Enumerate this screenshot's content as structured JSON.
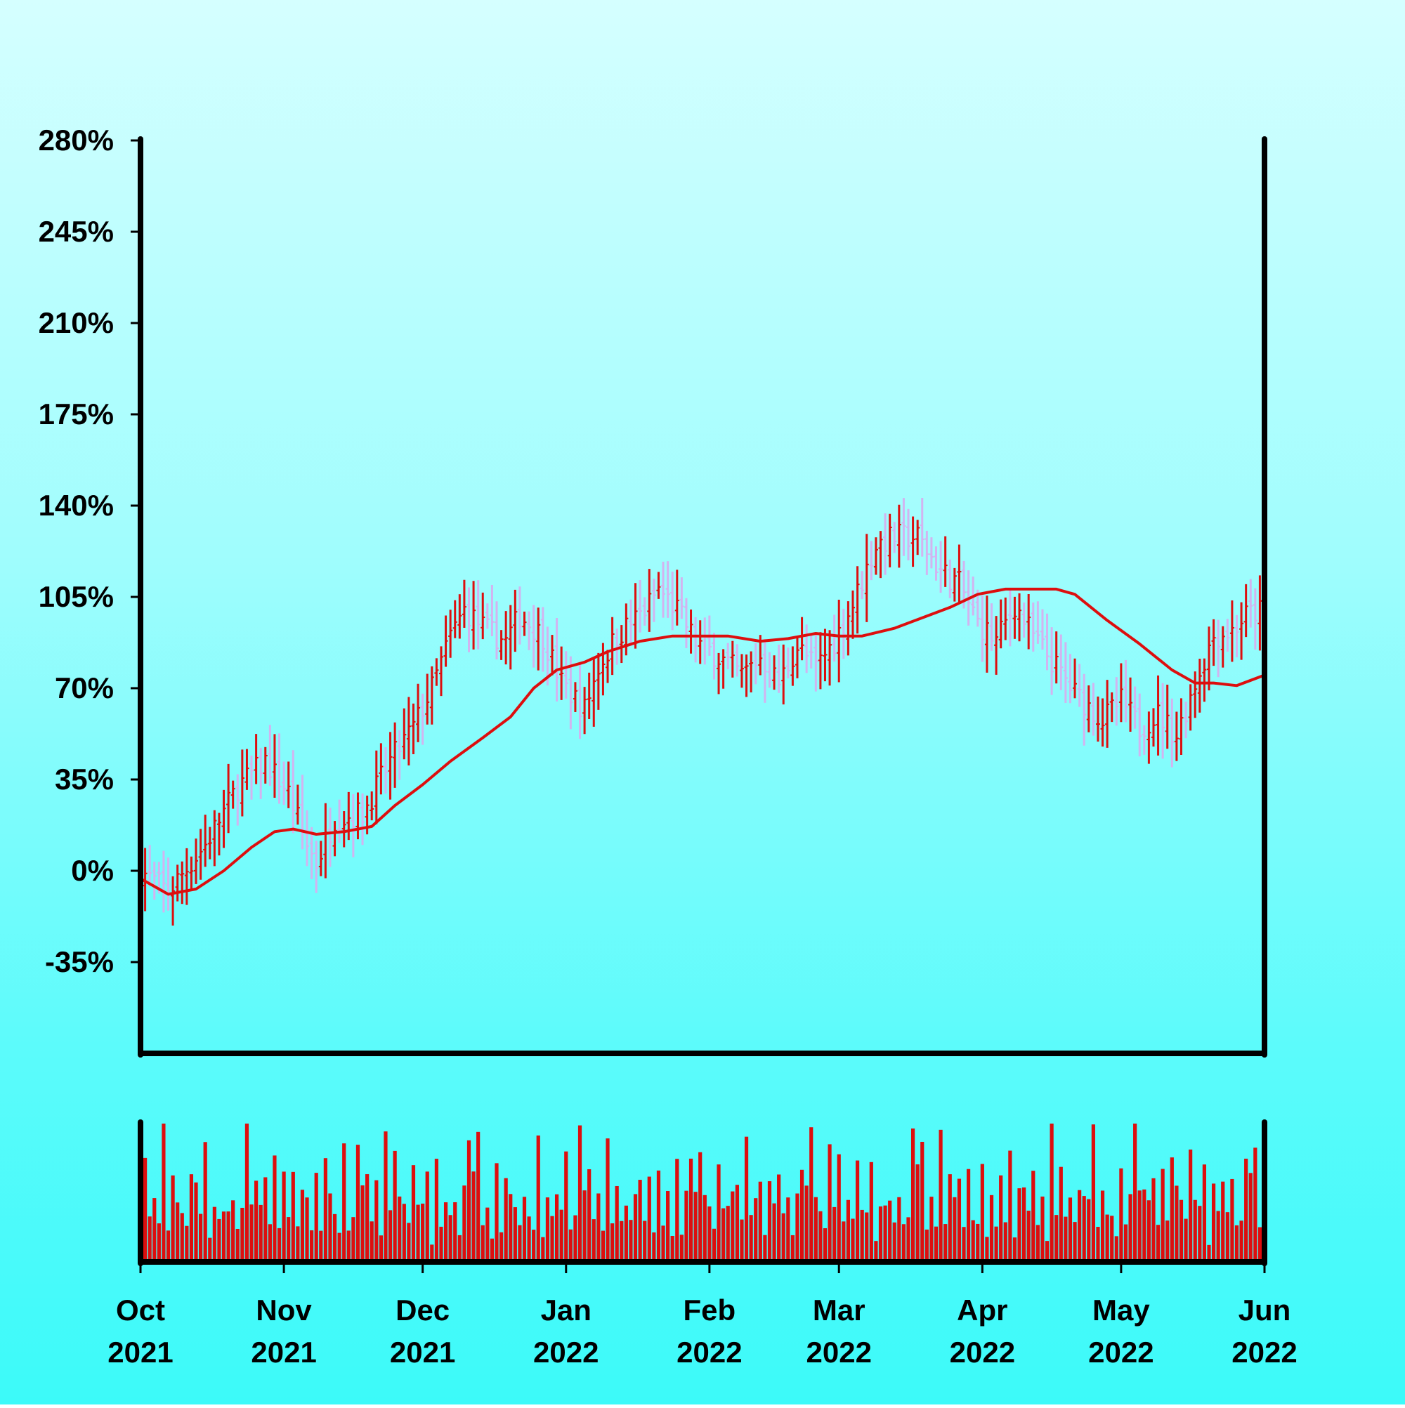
{
  "chart_data": {
    "type": "ohlc",
    "title": "",
    "xlabel": "",
    "ylabel": "",
    "colors": {
      "up": "#dd0e0e",
      "down": "#d2b4f0",
      "ma": "#dd0e0e",
      "volume": "#dd0e0e",
      "axis": "#000000",
      "background_top": "#d5ffff",
      "background_bottom": "#3cfaf9"
    },
    "y_axis": {
      "ylim": [
        -70,
        280
      ],
      "ticks": [
        280,
        245,
        210,
        175,
        140,
        105,
        70,
        35,
        0,
        -35
      ],
      "tick_labels": [
        "280%",
        "245%",
        "210%",
        "175%",
        "140%",
        "105%",
        "70%",
        "35%",
        "0%",
        "-35%"
      ]
    },
    "x_axis": {
      "range": [
        "2021-10-01",
        "2022-06-01"
      ],
      "ticks": [
        {
          "date": "2021-10-01",
          "label": [
            "Oct",
            "2021"
          ]
        },
        {
          "date": "2021-11-01",
          "label": [
            "Nov",
            "2021"
          ]
        },
        {
          "date": "2021-12-01",
          "label": [
            "Dec",
            "2021"
          ]
        },
        {
          "date": "2022-01-01",
          "label": [
            "Jan",
            "2022"
          ]
        },
        {
          "date": "2022-02-01",
          "label": [
            "Feb",
            "2022"
          ]
        },
        {
          "date": "2022-03-01",
          "label": [
            "Mar",
            "2022"
          ]
        },
        {
          "date": "2022-04-01",
          "label": [
            "Apr",
            "2022"
          ]
        },
        {
          "date": "2022-05-01",
          "label": [
            "May",
            "2022"
          ]
        },
        {
          "date": "2022-06-01",
          "label": [
            "Jun",
            "2022"
          ]
        }
      ]
    },
    "price_anchors": [
      [
        "2021-10-01",
        0
      ],
      [
        "2021-10-07",
        -8
      ],
      [
        "2021-10-15",
        10
      ],
      [
        "2021-10-22",
        32
      ],
      [
        "2021-10-28",
        42
      ],
      [
        "2021-11-02",
        30
      ],
      [
        "2021-11-06",
        10
      ],
      [
        "2021-11-08",
        3
      ],
      [
        "2021-11-12",
        20
      ],
      [
        "2021-11-18",
        22
      ],
      [
        "2021-11-24",
        42
      ],
      [
        "2021-11-29",
        55
      ],
      [
        "2021-12-03",
        70
      ],
      [
        "2021-12-07",
        90
      ],
      [
        "2021-12-10",
        100
      ],
      [
        "2021-12-15",
        92
      ],
      [
        "2021-12-19",
        88
      ],
      [
        "2021-12-22",
        98
      ],
      [
        "2021-12-27",
        90
      ],
      [
        "2021-12-31",
        72
      ],
      [
        "2022-01-05",
        62
      ],
      [
        "2022-01-08",
        78
      ],
      [
        "2022-01-12",
        90
      ],
      [
        "2022-01-18",
        100
      ],
      [
        "2022-01-21",
        108
      ],
      [
        "2022-01-25",
        100
      ],
      [
        "2022-01-29",
        88
      ],
      [
        "2022-02-03",
        82
      ],
      [
        "2022-02-08",
        75
      ],
      [
        "2022-02-12",
        82
      ],
      [
        "2022-02-16",
        72
      ],
      [
        "2022-02-20",
        86
      ],
      [
        "2022-02-24",
        78
      ],
      [
        "2022-02-28",
        88
      ],
      [
        "2022-03-04",
        102
      ],
      [
        "2022-03-09",
        125
      ],
      [
        "2022-03-13",
        128
      ],
      [
        "2022-03-18",
        128
      ],
      [
        "2022-03-23",
        115
      ],
      [
        "2022-03-27",
        110
      ],
      [
        "2022-03-31",
        95
      ],
      [
        "2022-04-04",
        88
      ],
      [
        "2022-04-08",
        102
      ],
      [
        "2022-04-12",
        90
      ],
      [
        "2022-04-17",
        78
      ],
      [
        "2022-04-21",
        68
      ],
      [
        "2022-04-27",
        58
      ],
      [
        "2022-05-01",
        65
      ],
      [
        "2022-05-05",
        55
      ],
      [
        "2022-05-09",
        60
      ],
      [
        "2022-05-13",
        52
      ],
      [
        "2022-05-17",
        72
      ],
      [
        "2022-05-21",
        90
      ],
      [
        "2022-05-25",
        92
      ],
      [
        "2022-05-28",
        98
      ],
      [
        "2022-06-01",
        100
      ]
    ],
    "moving_average": [
      [
        "2021-10-01",
        -3
      ],
      [
        "2021-10-04",
        -6
      ],
      [
        "2021-10-07",
        -9
      ],
      [
        "2021-10-13",
        -7
      ],
      [
        "2021-10-19",
        0
      ],
      [
        "2021-10-25",
        9
      ],
      [
        "2021-10-30",
        15
      ],
      [
        "2021-11-03",
        16
      ],
      [
        "2021-11-08",
        14
      ],
      [
        "2021-11-14",
        15
      ],
      [
        "2021-11-20",
        17
      ],
      [
        "2021-11-25",
        25
      ],
      [
        "2021-12-01",
        33
      ],
      [
        "2021-12-07",
        42
      ],
      [
        "2021-12-14",
        51
      ],
      [
        "2021-12-20",
        59
      ],
      [
        "2021-12-25",
        70
      ],
      [
        "2021-12-30",
        77
      ],
      [
        "2022-01-05",
        80
      ],
      [
        "2022-01-10",
        84
      ],
      [
        "2022-01-17",
        88
      ],
      [
        "2022-01-24",
        90
      ],
      [
        "2022-01-31",
        90
      ],
      [
        "2022-02-05",
        90
      ],
      [
        "2022-02-12",
        88
      ],
      [
        "2022-02-18",
        89
      ],
      [
        "2022-02-24",
        91
      ],
      [
        "2022-03-01",
        90
      ],
      [
        "2022-03-06",
        90
      ],
      [
        "2022-03-13",
        93
      ],
      [
        "2022-03-19",
        97
      ],
      [
        "2022-03-25",
        101
      ],
      [
        "2022-03-31",
        106
      ],
      [
        "2022-04-06",
        108
      ],
      [
        "2022-04-12",
        108
      ],
      [
        "2022-04-17",
        108
      ],
      [
        "2022-04-21",
        106
      ],
      [
        "2022-04-28",
        96
      ],
      [
        "2022-05-05",
        87
      ],
      [
        "2022-05-12",
        77
      ],
      [
        "2022-05-17",
        72
      ],
      [
        "2022-05-21",
        72
      ],
      [
        "2022-05-26",
        71
      ],
      [
        "2022-06-01",
        75
      ]
    ],
    "volume_level_pattern": [
      0.62,
      0.85,
      0.42,
      0.55,
      0.25,
      0.95,
      0.35,
      0.7,
      0.48,
      0.6,
      0.3,
      0.78,
      0.52,
      0.4,
      0.88,
      0.22,
      0.66,
      0.45,
      0.57,
      0.33,
      0.74,
      0.28,
      0.5,
      0.92
    ]
  }
}
